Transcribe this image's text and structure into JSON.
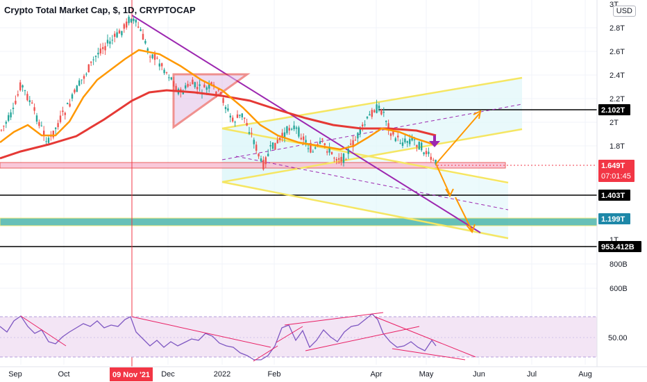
{
  "header": {
    "title": "Crypto Total Market Cap, $, 1D, CRYPTOCAP",
    "currency_button": "USD"
  },
  "price_axis": {
    "ticks": [
      "3T",
      "2.8T",
      "2.6T",
      "2.4T",
      "2.2T",
      "2T",
      "1.8T",
      "1T",
      "800B",
      "600B"
    ],
    "rsi_tick": "50.00"
  },
  "price_tags": [
    {
      "label": "2.102T",
      "color": "#000000"
    },
    {
      "label": "1.649T",
      "color": "#f23645",
      "countdown": "07:01:45"
    },
    {
      "label": "1.403T",
      "color": "#000000"
    },
    {
      "label": "1.199T",
      "color": "#1e88a8"
    },
    {
      "label": "953.412B",
      "color": "#000000"
    }
  ],
  "time_axis": {
    "labels": [
      "Sep",
      "Oct",
      "Dec",
      "2022",
      "Feb",
      "Apr",
      "May",
      "Jun",
      "Jul",
      "Aug"
    ],
    "highlight": {
      "label": "09 Nov '21",
      "color": "#f23645"
    }
  },
  "colors": {
    "up_candle": "#26a69a",
    "down_candle": "#ef5350",
    "ema_fast": "#ff9800",
    "ema_slow": "#e53935",
    "channel": "#f5e663",
    "trendline": "#9c27b0",
    "rsi_bg": "#f3e5f5",
    "support_zone": "#4db6ac"
  }
}
